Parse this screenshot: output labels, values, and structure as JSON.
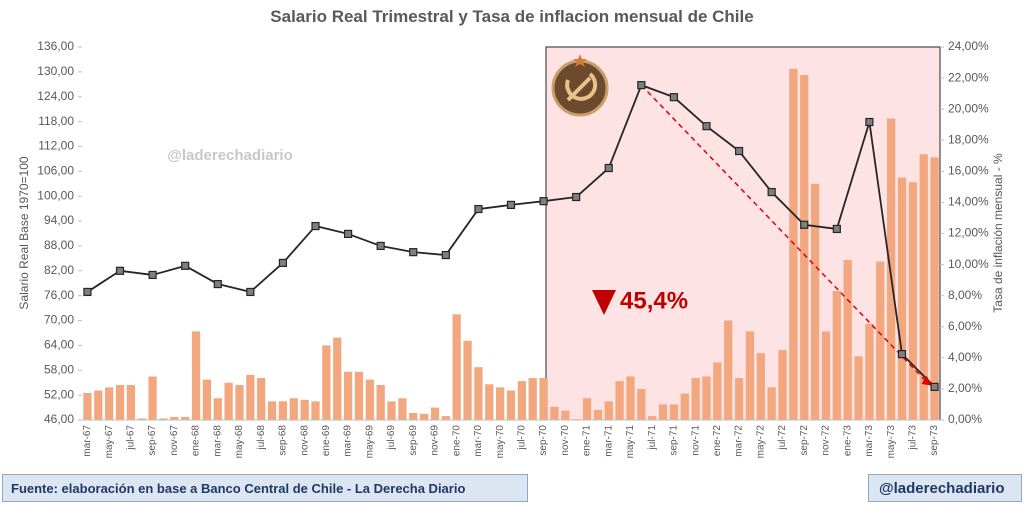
{
  "chart_data": {
    "type": "bar_line",
    "title": "Salario Real Trimestral y Tasa de inflacion mensual de Chile",
    "y_label": "Salario Real Base 1970=100",
    "y2_label": "Tasa de inflación mensual - %",
    "watermark": "@laderechadiario",
    "annotation": "45,4%",
    "categories": [
      "mar-67",
      null,
      "may-67",
      null,
      "jul-67",
      null,
      "sep-67",
      null,
      "nov-67",
      null,
      "ene-68",
      null,
      "mar-68",
      null,
      "may-68",
      null,
      "jul-68",
      null,
      "sep-68",
      null,
      "nov-68",
      null,
      "ene-69",
      null,
      "mar-69",
      null,
      "may-69",
      null,
      "jul-69",
      null,
      "sep-69",
      null,
      "nov-69",
      null,
      "ene-70",
      null,
      "mar-70",
      null,
      "may-70",
      null,
      "jul-70",
      null,
      "sep-70",
      null,
      "nov-70",
      null,
      "ene-71",
      null,
      "mar-71",
      null,
      "may-71",
      null,
      "jul-71",
      null,
      "sep-71",
      null,
      "nov-71",
      null,
      "ene-72",
      null,
      "mar-72",
      null,
      "may-72",
      null,
      "jul-72",
      null,
      "sep-72",
      null,
      "nov-72",
      null,
      "ene-73",
      null,
      "mar-73",
      null,
      "may-73",
      null,
      "jul-73",
      null,
      "sep-73"
    ],
    "series": [
      {
        "type": "bar",
        "axis": "y2",
        "color": "#f2a77e",
        "values": [
          1.74,
          1.9,
          2.1,
          2.25,
          2.25,
          0.1,
          2.8,
          0.1,
          0.2,
          0.2,
          5.7,
          2.6,
          1.4,
          2.4,
          2.25,
          2.9,
          2.7,
          1.2,
          1.2,
          1.4,
          1.3,
          1.2,
          4.8,
          5.3,
          3.1,
          3.1,
          2.6,
          2.25,
          1.2,
          1.4,
          0.45,
          0.4,
          0.8,
          0.25,
          6.8,
          5.1,
          3.4,
          2.3,
          2.1,
          1.9,
          2.5,
          2.7,
          2.7,
          0.85,
          0.6,
          0.05,
          1.4,
          0.65,
          1.2,
          2.5,
          2.8,
          2.0,
          0.25,
          1.0,
          1.0,
          1.7,
          2.7,
          2.8,
          3.7,
          6.4,
          2.7,
          5.7,
          4.3,
          2.1,
          4.5,
          22.6,
          22.2,
          15.2,
          5.7,
          8.3,
          10.3,
          4.1,
          6.2,
          10.2,
          19.4,
          15.6,
          15.3,
          17.1,
          16.9
        ]
      },
      {
        "type": "line",
        "axis": "y",
        "color": "#262626",
        "marker_color": "#7f7f7f",
        "values": [
          76.9,
          null,
          null,
          82.0,
          null,
          null,
          81.0,
          null,
          null,
          83.2,
          null,
          null,
          78.8,
          null,
          null,
          76.9,
          null,
          null,
          83.9,
          null,
          null,
          92.8,
          null,
          null,
          90.9,
          null,
          null,
          88.0,
          null,
          null,
          86.5,
          null,
          null,
          85.8,
          null,
          null,
          96.9,
          null,
          null,
          97.9,
          null,
          null,
          98.8,
          null,
          null,
          99.8,
          null,
          null,
          106.8,
          null,
          null,
          126.8,
          null,
          null,
          123.9,
          null,
          null,
          116.9,
          null,
          null,
          110.9,
          null,
          null,
          101.0,
          null,
          null,
          93.1,
          null,
          null,
          92.1,
          null,
          null,
          117.9,
          null,
          null,
          61.9,
          null,
          null,
          54.0
        ]
      }
    ],
    "ylim": [
      46,
      136
    ],
    "yticks": [
      {
        "value": 46,
        "label": "46,00"
      },
      {
        "value": 52,
        "label": "52,00"
      },
      {
        "value": 58,
        "label": "58,00"
      },
      {
        "value": 64,
        "label": "64,00"
      },
      {
        "value": 70,
        "label": "70,00"
      },
      {
        "value": 76,
        "label": "76,00"
      },
      {
        "value": 82,
        "label": "82,00"
      },
      {
        "value": 88,
        "label": "88,00"
      },
      {
        "value": 94,
        "label": "94,00"
      },
      {
        "value": 100,
        "label": "100,00"
      },
      {
        "value": 106,
        "label": "106,00"
      },
      {
        "value": 112,
        "label": "112,00"
      },
      {
        "value": 118,
        "label": "118,00"
      },
      {
        "value": 124,
        "label": "124,00"
      },
      {
        "value": 130,
        "label": "130,00"
      },
      {
        "value": 136,
        "label": "136,00"
      }
    ],
    "y2lim": [
      0,
      24
    ],
    "y2ticks": [
      {
        "value": 0,
        "label": "0,00%"
      },
      {
        "value": 2,
        "label": "2,00%"
      },
      {
        "value": 4,
        "label": "4,00%"
      },
      {
        "value": 6,
        "label": "6,00%"
      },
      {
        "value": 8,
        "label": "8,00%"
      },
      {
        "value": 10,
        "label": "10,00%"
      },
      {
        "value": 12,
        "label": "12,00%"
      },
      {
        "value": 14,
        "label": "14,00%"
      },
      {
        "value": 16,
        "label": "16,00%"
      },
      {
        "value": 18,
        "label": "18,00%"
      },
      {
        "value": 20,
        "label": "20,00%"
      },
      {
        "value": 22,
        "label": "22,00%"
      },
      {
        "value": 24,
        "label": "24,00%"
      }
    ]
  },
  "footer": {
    "source": "Fuente: elaboración en base a Banco Central de Chile - La Derecha Diario",
    "handle": "@laderechadiario"
  }
}
